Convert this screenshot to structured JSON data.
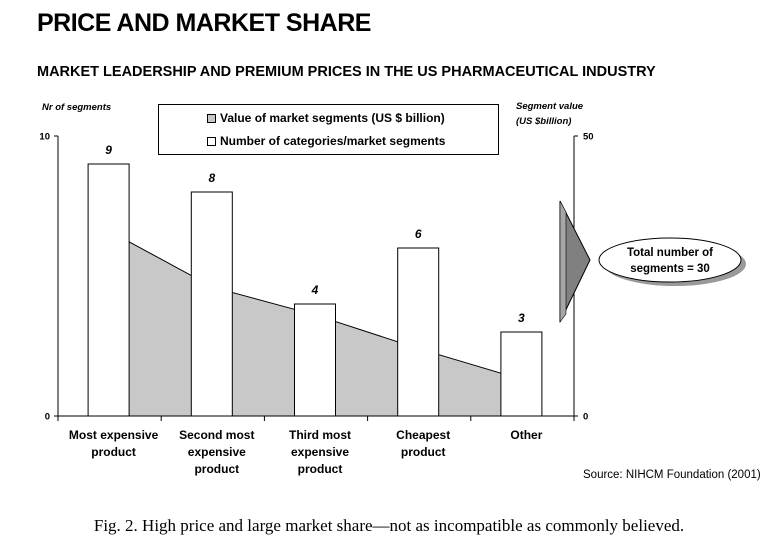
{
  "page": {
    "main_title": "PRICE AND MARKET SHARE",
    "subtitle": "MARKET LEADERSHIP AND PREMIUM PRICES IN THE US PHARMACEUTICAL INDUSTRY",
    "source": "Source: NIHCM Foundation (2001)",
    "caption": "Fig. 2. High price and large market share—not as incompatible as commonly believed."
  },
  "callout": {
    "text_line1": "Total number of",
    "text_line2": "segments = 30",
    "arrow_color": "#808080"
  },
  "colors": {
    "area_fill": "#c8c8c8",
    "bar_fill": "#ffffff",
    "stroke": "#000000"
  },
  "chart_data": {
    "type": "bar",
    "categories": [
      [
        "Most expensive",
        "product"
      ],
      [
        "Second  most",
        "expensive",
        "product"
      ],
      [
        "Third most",
        "expensive",
        "product"
      ],
      [
        "Cheapest",
        "product"
      ],
      [
        "Other"
      ]
    ],
    "left_axis": {
      "title_lines": [
        "Nr of segments"
      ],
      "ticks": [
        "0",
        "10"
      ],
      "range": [
        0,
        10
      ]
    },
    "right_axis": {
      "title_lines": [
        "Segment value",
        "(US $billion)"
      ],
      "ticks": [
        "0",
        "50"
      ],
      "range": [
        0,
        50
      ]
    },
    "series": [
      {
        "name": "Value of market segments (US $ billion)",
        "type": "area",
        "axis": "right",
        "values": [
          33,
          23,
          18,
          12,
          6.5
        ]
      },
      {
        "name": "Number of categories/market segments",
        "type": "bar",
        "axis": "left",
        "values": [
          9,
          8,
          4,
          6,
          3
        ],
        "data_labels": [
          "9",
          "8",
          "4",
          "6",
          "3"
        ]
      }
    ],
    "grid": false,
    "legend": "top-center"
  }
}
